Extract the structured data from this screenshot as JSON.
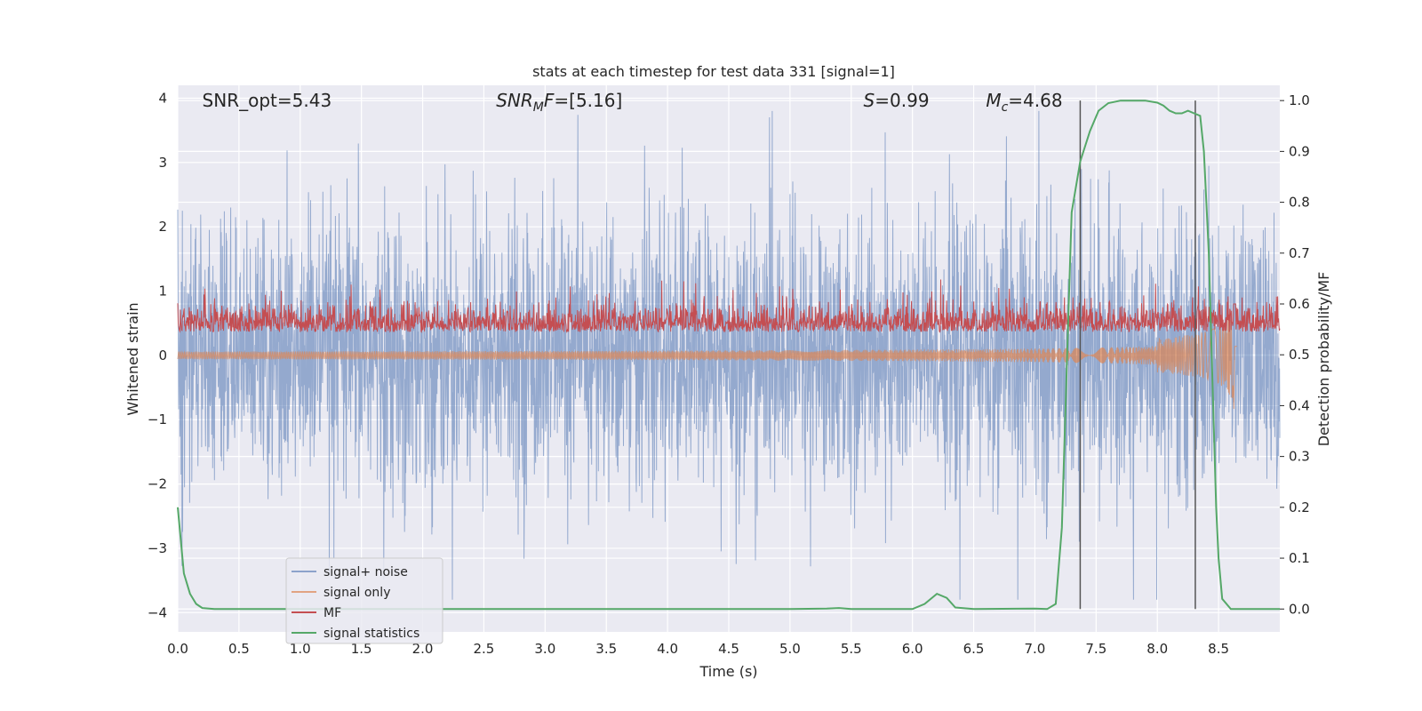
{
  "chart_data": {
    "type": "line",
    "title": "stats at each timestep for test data 331 [signal=1]",
    "xlabel": "Time (s)",
    "ylabel_left": "Whitened strain",
    "ylabel_right": "Detection probability/MF",
    "xlim": [
      0.0,
      9.0
    ],
    "ylim_left": [
      -4.3,
      4.2
    ],
    "ylim_right": [
      -0.045,
      1.03
    ],
    "x_ticks": [
      "0.0",
      "0.5",
      "1.0",
      "1.5",
      "2.0",
      "2.5",
      "3.0",
      "3.5",
      "4.0",
      "4.5",
      "5.0",
      "5.5",
      "6.0",
      "6.5",
      "7.0",
      "7.5",
      "8.0",
      "8.5"
    ],
    "y_left_ticks": [
      "−4",
      "−3",
      "−2",
      "−1",
      "0",
      "1",
      "2",
      "3",
      "4"
    ],
    "y_right_ticks": [
      "0.0",
      "0.1",
      "0.2",
      "0.3",
      "0.4",
      "0.5",
      "0.6",
      "0.7",
      "0.8",
      "0.9",
      "1.0"
    ],
    "grid": true,
    "legend_position": "lower-left",
    "annotations": [
      {
        "text": "SNR_opt=5.43",
        "x": 0.2,
        "y": 3.95
      },
      {
        "text": "SNR_MF=[5.16]",
        "x": 2.6,
        "y": 3.95
      },
      {
        "text": "S=0.99",
        "x": 5.6,
        "y": 3.95
      },
      {
        "text": "M_c=4.68",
        "x": 6.6,
        "y": 3.95
      }
    ],
    "vlines": [
      7.37,
      8.31
    ],
    "series": [
      {
        "name": "signal+ noise",
        "color": "#4c72b0",
        "axis": "left",
        "description": "noisy whitened strain, approx. ±1 sigma with spikes to ±3.8"
      },
      {
        "name": "signal only",
        "color": "#dd8452",
        "axis": "left",
        "description": "chirp growing to about ±0.35 near t=8.6"
      },
      {
        "name": "MF",
        "color": "#c44e52",
        "axis": "right",
        "description": "matched filter output around 0.5–0.6"
      },
      {
        "name": "signal statistics",
        "color": "#55a868",
        "axis": "right",
        "x": [
          0.0,
          0.05,
          0.1,
          0.15,
          0.2,
          0.3,
          0.5,
          1.0,
          2.0,
          3.0,
          4.0,
          5.0,
          5.3,
          5.4,
          5.5,
          6.0,
          6.1,
          6.2,
          6.28,
          6.35,
          6.5,
          7.0,
          7.1,
          7.17,
          7.22,
          7.27,
          7.3,
          7.37,
          7.45,
          7.52,
          7.6,
          7.7,
          7.8,
          7.9,
          8.0,
          8.05,
          8.1,
          8.15,
          8.2,
          8.25,
          8.3,
          8.35,
          8.38,
          8.42,
          8.45,
          8.48,
          8.5,
          8.53,
          8.6,
          9.0
        ],
        "y": [
          0.2,
          0.07,
          0.03,
          0.01,
          0.002,
          0.0,
          0.0,
          0.0,
          0.0,
          0.0,
          0.0,
          0.0,
          0.001,
          0.002,
          0.0,
          0.0,
          0.01,
          0.03,
          0.022,
          0.003,
          0.0,
          0.001,
          0.0,
          0.01,
          0.16,
          0.55,
          0.78,
          0.88,
          0.94,
          0.98,
          0.995,
          1.0,
          1.0,
          1.0,
          0.996,
          0.99,
          0.98,
          0.975,
          0.975,
          0.98,
          0.975,
          0.97,
          0.9,
          0.7,
          0.45,
          0.2,
          0.1,
          0.02,
          0.0,
          0.0
        ]
      }
    ]
  }
}
